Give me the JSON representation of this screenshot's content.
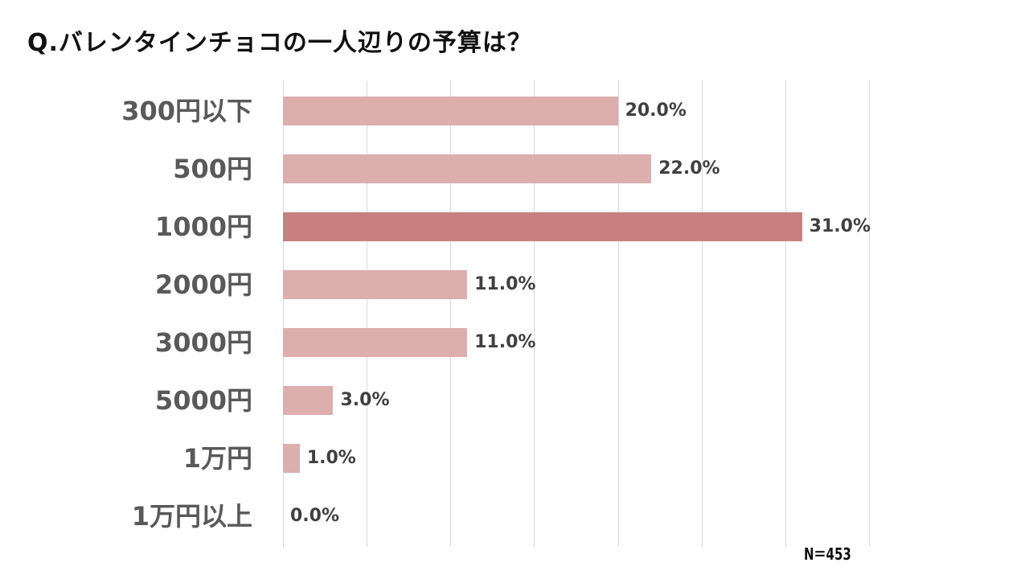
{
  "title": "Q.バレンタインチョコの一人辺りの予算は？",
  "note": "N＝453",
  "colors": {
    "bar": "#dcaeae",
    "highlight": "#c97f80",
    "grid": "#d9d9d9"
  },
  "chart_data": {
    "type": "bar",
    "orientation": "horizontal",
    "title": "Q.バレンタインチョコの一人辺りの予算は？",
    "categories": [
      "300円以下",
      "500円",
      "1000円",
      "2000円",
      "3000円",
      "5000円",
      "1万円",
      "1万円以上"
    ],
    "values": [
      20.0,
      22.0,
      31.0,
      11.0,
      11.0,
      3.0,
      1.0,
      0.0
    ],
    "labels": [
      "20.0%",
      "22.0%",
      "31.0%",
      "11.0%",
      "11.0%",
      "3.0%",
      "1.0%",
      "0.0%"
    ],
    "highlight_index": 2,
    "xlim": [
      0,
      35
    ],
    "grid": true,
    "gridlines": [
      0,
      5,
      10,
      15,
      20,
      25,
      30,
      35
    ],
    "xlabel": "",
    "ylabel": "",
    "annotation": "N＝453"
  }
}
